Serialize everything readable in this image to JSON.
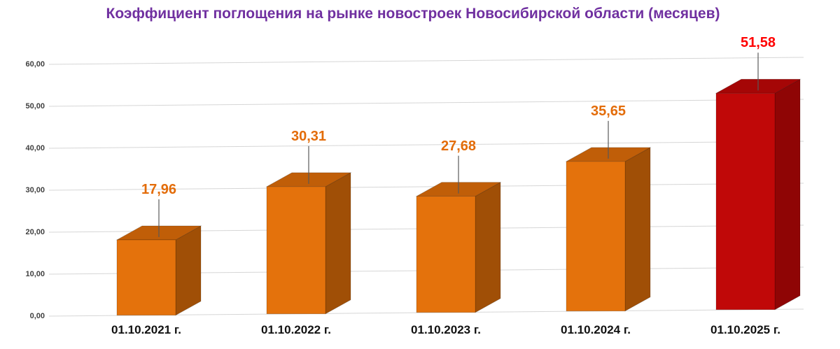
{
  "colors": {
    "title": "#7030A0",
    "grid": "#D6D6D6",
    "leader": "#595959",
    "axis_text": "#3F3F3F",
    "category_text": "#111111",
    "background": "#FFFFFF"
  },
  "chart_data": {
    "type": "bar",
    "effect": "3d-columns",
    "title": "Коэффициент поглощения на рынке новостроек Новосибирской области (месяцев)",
    "categories": [
      "01.10.2021 г.",
      "01.10.2022 г.",
      "01.10.2023 г.",
      "01.10.2024 г.",
      "01.10.2025 г."
    ],
    "values": [
      17.96,
      30.31,
      27.68,
      35.65,
      51.58
    ],
    "value_labels": [
      "17,96",
      "30,31",
      "27,68",
      "35,65",
      "51,58"
    ],
    "bar_colors": [
      {
        "front": "#E4720C",
        "top": "#C05E08",
        "side": "#A04F06",
        "label": "#E36C09"
      },
      {
        "front": "#E4720C",
        "top": "#C05E08",
        "side": "#A04F06",
        "label": "#E36C09"
      },
      {
        "front": "#E4720C",
        "top": "#C05E08",
        "side": "#A04F06",
        "label": "#E36C09"
      },
      {
        "front": "#E4720C",
        "top": "#C05E08",
        "side": "#A04F06",
        "label": "#E36C09"
      },
      {
        "front": "#C00808",
        "top": "#A50606",
        "side": "#8F0505",
        "label": "#FF0000"
      }
    ],
    "y_ticks": [
      {
        "value": 0,
        "label": "0,00"
      },
      {
        "value": 10,
        "label": "10,00"
      },
      {
        "value": 20,
        "label": "20,00"
      },
      {
        "value": 30,
        "label": "30,00"
      },
      {
        "value": 40,
        "label": "40,00"
      },
      {
        "value": 50,
        "label": "50,00"
      },
      {
        "value": 60,
        "label": "60,00"
      }
    ],
    "ylim": [
      0,
      60
    ],
    "xlabel": "",
    "ylabel": "",
    "grid": true,
    "legend": "none"
  }
}
